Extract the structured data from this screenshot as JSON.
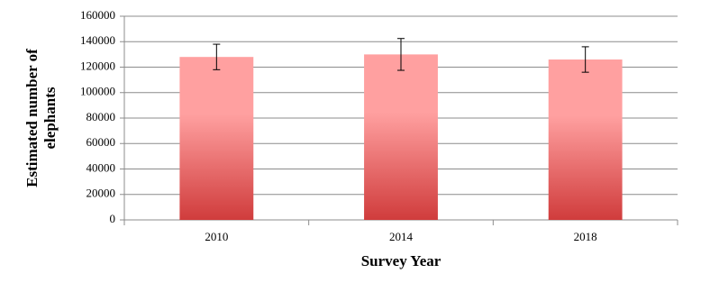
{
  "chart_data": {
    "type": "bar",
    "x_label": "Survey Year",
    "y_label": "Estimated number of elephants",
    "categories": [
      "2010",
      "2014",
      "2018"
    ],
    "values": [
      128000,
      130000,
      126000
    ],
    "errors": [
      10000,
      12500,
      10000
    ],
    "gradient": [
      "#ffa0a0",
      "#d03c3c"
    ],
    "ylim": [
      0,
      160000
    ],
    "yticks": [
      0,
      20000,
      40000,
      60000,
      80000,
      100000,
      120000,
      140000,
      160000
    ],
    "grid": true
  }
}
